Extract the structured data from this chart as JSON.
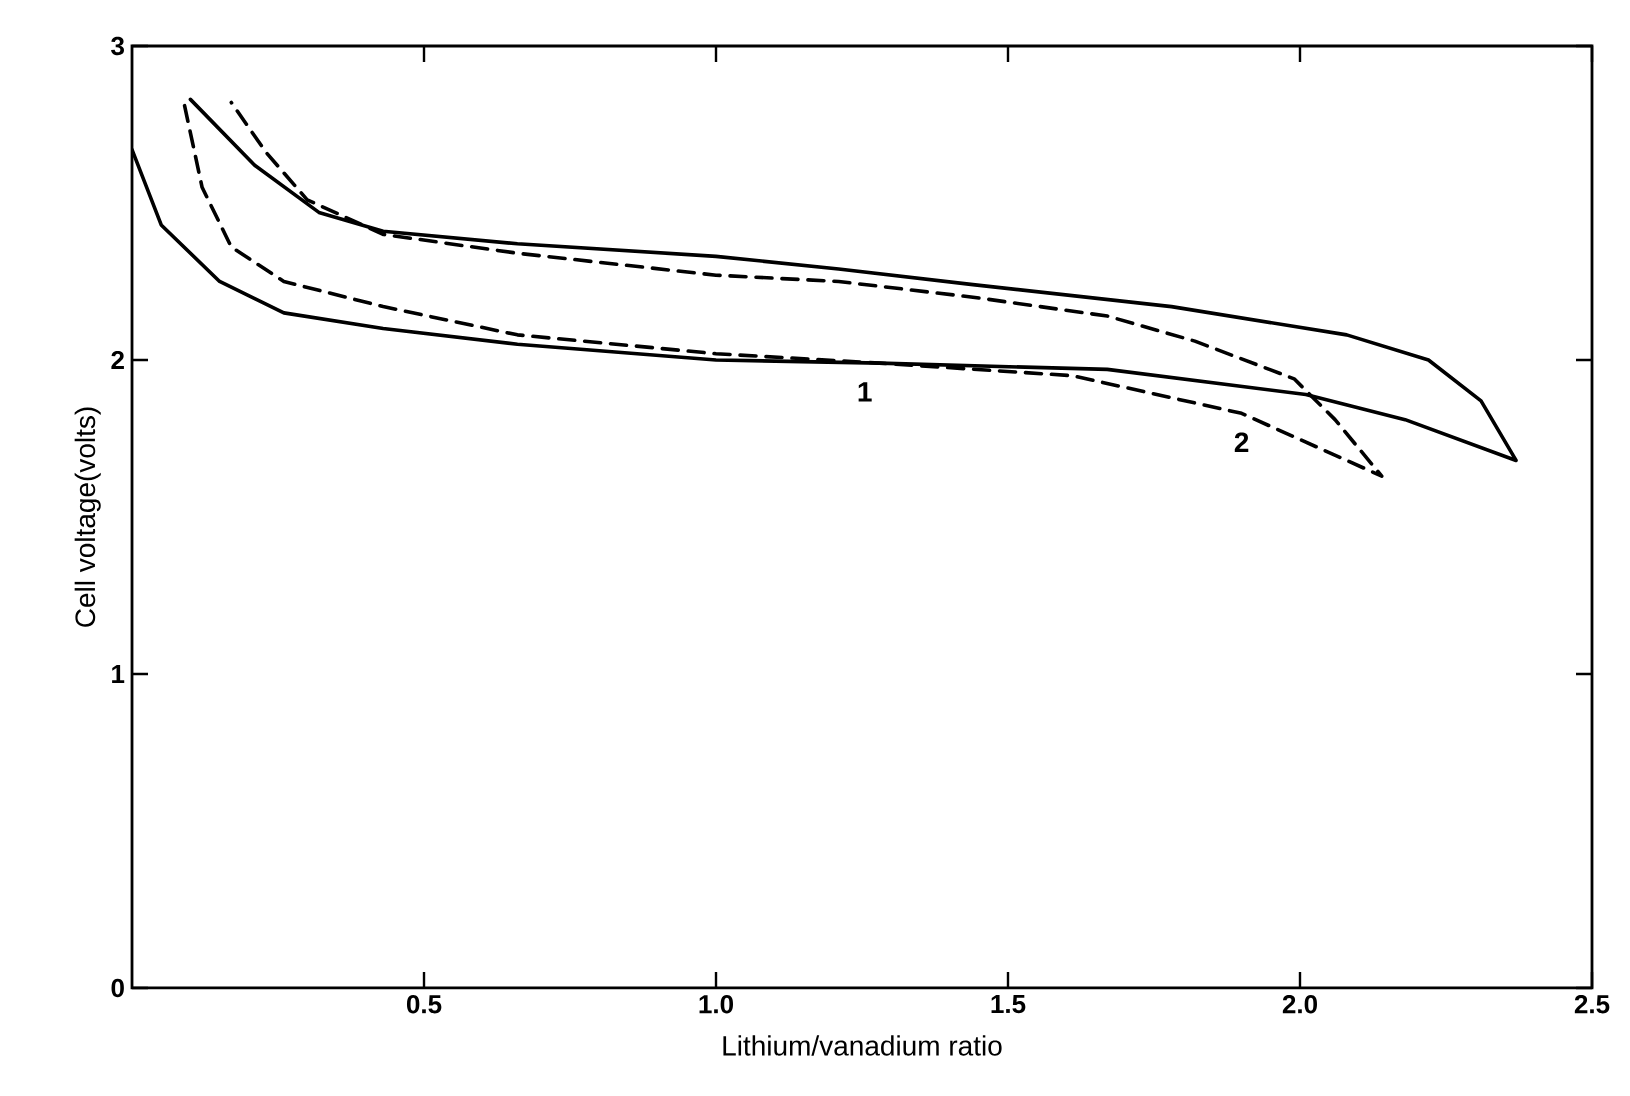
{
  "chart_data": {
    "type": "line",
    "xlabel": "Lithium/vanadium ratio",
    "ylabel": "Cell voltage(volts)",
    "xlim": [
      0,
      2.5
    ],
    "ylim": [
      0,
      3
    ],
    "xticks": [
      0.5,
      {
        "value": 1,
        "label": "1.0"
      },
      1.5,
      {
        "value": 2,
        "label": "2.0"
      },
      2.5
    ],
    "yticks": [
      0,
      1,
      2,
      3
    ],
    "grid": false,
    "marker": "none",
    "series": [
      {
        "name": "1",
        "color": "#000000",
        "line_style": "solid",
        "x": [
          0,
          0.05,
          0.15,
          0.26,
          0.43,
          0.66,
          1.0,
          1.28,
          1.67,
          2.01,
          2.18,
          2.37,
          2.31,
          2.22,
          2.08,
          1.78,
          1.44,
          1.21,
          1.0,
          0.66,
          0.43,
          0.32,
          0.21,
          0.1
        ],
        "values": [
          2.67,
          2.43,
          2.25,
          2.15,
          2.1,
          2.05,
          2.0,
          1.99,
          1.97,
          1.89,
          1.81,
          1.68,
          1.87,
          2.0,
          2.08,
          2.17,
          2.24,
          2.29,
          2.33,
          2.37,
          2.41,
          2.47,
          2.62,
          2.83
        ]
      },
      {
        "name": "2",
        "color": "#000000",
        "line_style": "dashed",
        "x": [
          0.09,
          0.12,
          0.17,
          0.26,
          0.43,
          0.66,
          1.0,
          1.28,
          1.61,
          1.9,
          2.14,
          2.06,
          1.99,
          1.82,
          1.67,
          1.44,
          1.21,
          1.0,
          0.66,
          0.43,
          0.3,
          0.23,
          0.17
        ],
        "values": [
          2.81,
          2.55,
          2.36,
          2.25,
          2.17,
          2.08,
          2.02,
          1.99,
          1.95,
          1.83,
          1.63,
          1.81,
          1.94,
          2.06,
          2.14,
          2.2,
          2.25,
          2.27,
          2.34,
          2.4,
          2.51,
          2.66,
          2.82
        ]
      }
    ]
  }
}
